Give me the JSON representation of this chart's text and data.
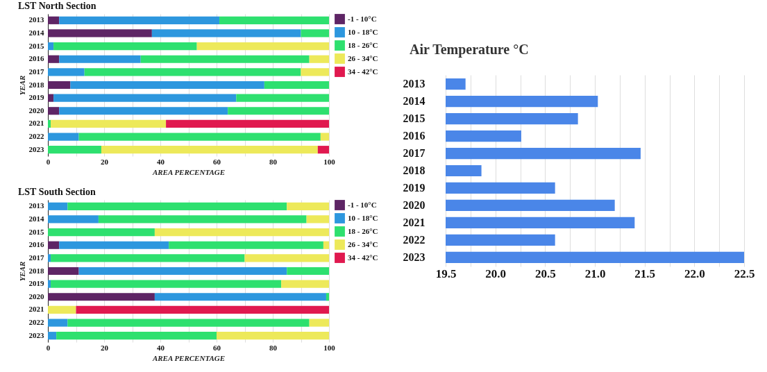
{
  "chart_data": [
    {
      "type": "bar",
      "title": "LST North Section",
      "xlabel": "AREA PERCENTAGE",
      "ylabel": "YEAR",
      "orientation": "horizontal",
      "stacked": true,
      "grid": "x",
      "legend": "right",
      "categories": [
        "2013",
        "2014",
        "2015",
        "2016",
        "2017",
        "2018",
        "2019",
        "2020",
        "2021",
        "2022",
        "2023"
      ],
      "xlim": [
        0,
        100
      ],
      "xticks": [
        0,
        {
          "value": 10,
          "label": null
        },
        20,
        {
          "value": 30,
          "label": null
        },
        40,
        {
          "value": 50,
          "label": null
        },
        60,
        {
          "value": 70,
          "label": null
        },
        80,
        {
          "value": 90,
          "label": null
        },
        100
      ],
      "series": [
        {
          "name": "-1 - 10°C",
          "color": "#5e2565",
          "values": [
            4,
            37,
            null,
            4,
            null,
            8,
            2,
            4,
            null,
            null,
            null
          ]
        },
        {
          "name": "10 - 18°C",
          "color": "#2d97de",
          "values": [
            57,
            53,
            2,
            29,
            13,
            69,
            65,
            60,
            null,
            11,
            null
          ]
        },
        {
          "name": "18 - 26°C",
          "color": "#2ee06f",
          "values": [
            39,
            10,
            51,
            60,
            77,
            23,
            33,
            36,
            1,
            86,
            19
          ]
        },
        {
          "name": "26 - 34°C",
          "color": "#ede95a",
          "values": [
            null,
            null,
            47,
            7,
            10,
            null,
            null,
            null,
            41,
            3,
            77
          ]
        },
        {
          "name": "34 - 42°C",
          "color": "#e0194f",
          "values": [
            null,
            null,
            null,
            null,
            null,
            null,
            null,
            null,
            58,
            null,
            4
          ]
        }
      ]
    },
    {
      "type": "bar",
      "title": "LST South Section",
      "xlabel": "AREA PERCENTAGE",
      "ylabel": "YEAR",
      "orientation": "horizontal",
      "stacked": true,
      "grid": "x",
      "legend": "right",
      "categories": [
        "2013",
        "2014",
        "2015",
        "2016",
        "2017",
        "2018",
        "2019",
        "2020",
        "2021",
        "2022",
        "2023"
      ],
      "xlim": [
        0,
        100
      ],
      "xticks": [
        0,
        {
          "value": 10,
          "label": null
        },
        20,
        {
          "value": 30,
          "label": null
        },
        40,
        {
          "value": 50,
          "label": null
        },
        60,
        {
          "value": 70,
          "label": null
        },
        80,
        {
          "value": 90,
          "label": null
        },
        100
      ],
      "series": [
        {
          "name": "-1 - 10°C",
          "color": "#5e2565",
          "values": [
            null,
            null,
            null,
            4,
            null,
            11,
            null,
            38,
            null,
            null,
            null
          ]
        },
        {
          "name": "10 - 18°C",
          "color": "#2d97de",
          "values": [
            7,
            18,
            null,
            39,
            1,
            74,
            1,
            61,
            null,
            7,
            3
          ]
        },
        {
          "name": "18 - 26°C",
          "color": "#2ee06f",
          "values": [
            78,
            74,
            38,
            55,
            69,
            15,
            82,
            1,
            null,
            86,
            57
          ]
        },
        {
          "name": "26 - 34°C",
          "color": "#ede95a",
          "values": [
            15,
            8,
            62,
            2,
            30,
            null,
            17,
            null,
            10,
            7,
            40
          ]
        },
        {
          "name": "34 - 42°C",
          "color": "#e0194f",
          "values": [
            null,
            null,
            null,
            null,
            null,
            null,
            null,
            null,
            90,
            null,
            null
          ]
        }
      ]
    },
    {
      "type": "bar",
      "title": "Air Temperature °C",
      "orientation": "horizontal",
      "grid": "x",
      "categories": [
        "2013",
        "2014",
        "2015",
        "2016",
        "2017",
        "2018",
        "2019",
        "2020",
        "2021",
        "2022",
        "2023"
      ],
      "xlim": [
        19.5,
        22.5
      ],
      "xticks": [
        19.5,
        {
          "value": 19.75,
          "label": null
        },
        {
          "value": 20,
          "label": "20.0"
        },
        {
          "value": 20.25,
          "label": null
        },
        20.5,
        {
          "value": 20.75,
          "label": null
        },
        {
          "value": 21,
          "label": "21.0"
        },
        {
          "value": 21.25,
          "label": null
        },
        21.5,
        {
          "value": 21.75,
          "label": null
        },
        {
          "value": 22,
          "label": "22.0"
        },
        {
          "value": 22.25,
          "label": null
        },
        22.5
      ],
      "series": [
        {
          "color": "#4a86e8",
          "values": [
            19.7,
            21.03,
            20.83,
            20.26,
            21.46,
            19.86,
            20.6,
            21.2,
            21.4,
            20.6,
            22.5
          ]
        }
      ]
    }
  ]
}
